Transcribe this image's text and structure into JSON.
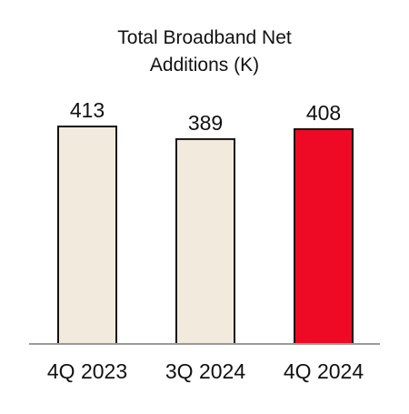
{
  "chart_data": {
    "type": "bar",
    "title_lines": [
      "Total Broadband Net",
      "Additions (K)"
    ],
    "categories": [
      "4Q 2023",
      "3Q 2024",
      "4Q 2024"
    ],
    "values": [
      413,
      389,
      408
    ],
    "data_labels": [
      "413",
      "389",
      "408"
    ],
    "xlabel": "",
    "ylabel": "",
    "ylim": [
      0,
      413
    ],
    "grid": false,
    "legend": "none",
    "colors": {
      "default_bar": "#F2EBDD",
      "highlight_bar": "#EE0A24",
      "bar_stroke": "#111111",
      "axis": "#9A9A9A"
    },
    "highlight_index": 2
  }
}
